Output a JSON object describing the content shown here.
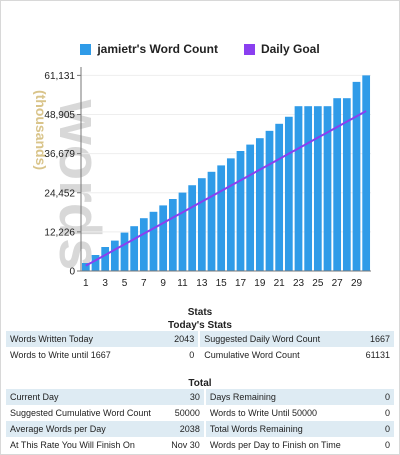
{
  "colors": {
    "bars": "#2f9be8",
    "goal_line": "#8a3ff0",
    "axis_label": "#d9c48a",
    "watermark": "#d8d8d8",
    "row_shade": "#deebf3"
  },
  "legend": {
    "word_count": "jamietr's Word Count",
    "daily_goal": "Daily Goal"
  },
  "chart_data": {
    "type": "bar",
    "watermark": "words",
    "ylabel": "(thousands)",
    "ylim": [
      0,
      62500
    ],
    "y_ticks": [
      0,
      12226,
      24452,
      36679,
      48905,
      61131
    ],
    "y_tick_labels": [
      "0",
      "12,226",
      "24,452",
      "36,679",
      "48,905",
      "61,131"
    ],
    "x_tick_labels": [
      "1",
      "3",
      "5",
      "7",
      "9",
      "11",
      "13",
      "15",
      "17",
      "19",
      "21",
      "23",
      "25",
      "27",
      "29"
    ],
    "categories": [
      1,
      2,
      3,
      4,
      5,
      6,
      7,
      8,
      9,
      10,
      11,
      12,
      13,
      14,
      15,
      16,
      17,
      18,
      19,
      20,
      21,
      22,
      23,
      24,
      25,
      26,
      27,
      28,
      29,
      30
    ],
    "series": [
      {
        "name": "jamietr's Word Count",
        "values": [
          2500,
          5000,
          7500,
          9500,
          12000,
          14000,
          16500,
          18500,
          20500,
          22500,
          24500,
          26800,
          29000,
          31000,
          33000,
          35200,
          37500,
          39500,
          41500,
          43800,
          46000,
          48200,
          51500,
          51500,
          51500,
          51500,
          54000,
          54000,
          59100,
          61131
        ]
      },
      {
        "name": "Daily Goal",
        "type": "line",
        "values": [
          1667,
          3333,
          5000,
          6667,
          8333,
          10000,
          11667,
          13333,
          15000,
          16667,
          18333,
          20000,
          21667,
          23333,
          25000,
          26667,
          28333,
          30000,
          31667,
          33333,
          35000,
          36667,
          38333,
          40000,
          41667,
          43333,
          45000,
          46667,
          48333,
          50000
        ]
      }
    ]
  },
  "stats": {
    "title": "Stats",
    "today_title": "Today's Stats",
    "today_rows": [
      {
        "l1": "Words Written Today",
        "v1": "2043",
        "l2": "Suggested Daily Word Count",
        "v2": "1667"
      },
      {
        "l1": "Words to Write until 1667",
        "v1": "0",
        "l2": "Cumulative Word Count",
        "v2": "61131"
      }
    ],
    "total_title": "Total",
    "total_rows": [
      {
        "l1": "Current Day",
        "v1": "30",
        "l2": "Days Remaining",
        "v2": "0"
      },
      {
        "l1": "Suggested Cumulative Word Count",
        "v1": "50000",
        "l2": "Words to Write Until 50000",
        "v2": "0"
      },
      {
        "l1": "Average Words per Day",
        "v1": "2038",
        "l2": "Total Words Remaining",
        "v2": "0"
      },
      {
        "l1": "At This Rate You Will Finish On",
        "v1": "Nov 30",
        "l2": "Words per Day to Finish on Time",
        "v2": "0"
      }
    ]
  }
}
